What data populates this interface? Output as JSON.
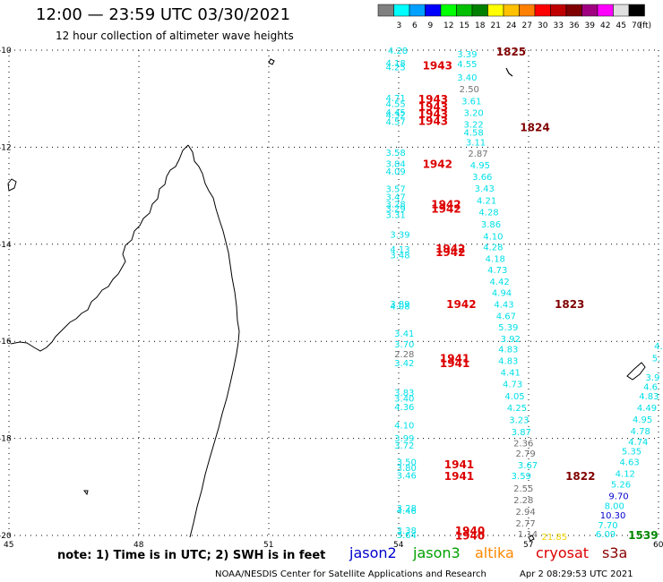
{
  "header": {
    "title": "12:00 — 23:59 UTC 03/30/2021",
    "subtitle": "12 hour collection of altimeter wave heights"
  },
  "legend": {
    "unit": "(ft)",
    "bins": [
      {
        "label": "",
        "color": "#808080"
      },
      {
        "label": "3",
        "color": "#00ffff"
      },
      {
        "label": "6",
        "color": "#00a0ff"
      },
      {
        "label": "9",
        "color": "#0000ff"
      },
      {
        "label": "12",
        "color": "#00ff00"
      },
      {
        "label": "15",
        "color": "#00c000"
      },
      {
        "label": "18",
        "color": "#008000"
      },
      {
        "label": "21",
        "color": "#ffff00"
      },
      {
        "label": "24",
        "color": "#ffc000"
      },
      {
        "label": "27",
        "color": "#ff8000"
      },
      {
        "label": "30",
        "color": "#ff0000"
      },
      {
        "label": "33",
        "color": "#c00000"
      },
      {
        "label": "36",
        "color": "#800000"
      },
      {
        "label": "39",
        "color": "#a00080"
      },
      {
        "label": "42",
        "color": "#ff00ff"
      },
      {
        "label": "45",
        "color": "#e0e0e0"
      },
      {
        "label": "70",
        "color": "#000000"
      }
    ]
  },
  "axes": {
    "lat_labels": [
      "-10",
      "-12",
      "-14",
      "-16",
      "-18",
      "-20"
    ],
    "lon_labels": [
      "45",
      "48",
      "51",
      "54",
      "57",
      "60"
    ]
  },
  "footer": {
    "note": "note: 1) Time is in UTC; 2) SWH is in feet",
    "satellites": [
      {
        "name": "jason2",
        "color": "#0000cc"
      },
      {
        "name": "jason3",
        "color": "#00a000"
      },
      {
        "name": "altika",
        "color": "#ff8800"
      },
      {
        "name": "cryosat",
        "color": "#dd0000"
      },
      {
        "name": "s3a",
        "color": "#880000"
      }
    ],
    "credit": "NOAA/NESDIS Center for Satellite Applications and Research",
    "stamp": "Apr  2 08:29:53 UTC 2021"
  },
  "colors": {
    "cyan": "#00e0e8",
    "gray": "#707070",
    "red": "#dd0000",
    "dark": "#800000",
    "blue": "#0000cc",
    "green": "#008800",
    "yellow": "#f0d000"
  },
  "observations": [
    {
      "lat": -10.0,
      "lon": 53.75,
      "v": "4.28",
      "c": "cyan"
    },
    {
      "lat": -10.26,
      "lon": 53.7,
      "v": "4.18",
      "c": "cyan"
    },
    {
      "lat": -10.34,
      "lon": 53.7,
      "v": "4.25",
      "c": "cyan"
    },
    {
      "lat": -10.98,
      "lon": 53.7,
      "v": "4.71",
      "c": "cyan"
    },
    {
      "lat": -11.1,
      "lon": 53.7,
      "v": "4.55",
      "c": "cyan"
    },
    {
      "lat": -11.27,
      "lon": 53.7,
      "v": "4.45",
      "c": "cyan"
    },
    {
      "lat": -11.33,
      "lon": 53.7,
      "v": "4.32",
      "c": "cyan"
    },
    {
      "lat": -11.47,
      "lon": 53.7,
      "v": "4.57",
      "c": "cyan"
    },
    {
      "lat": -12.1,
      "lon": 53.7,
      "v": "3.58",
      "c": "cyan"
    },
    {
      "lat": -12.33,
      "lon": 53.7,
      "v": "3.84",
      "c": "cyan"
    },
    {
      "lat": -12.49,
      "lon": 53.7,
      "v": "4.09",
      "c": "cyan"
    },
    {
      "lat": -12.85,
      "lon": 53.7,
      "v": "3.57",
      "c": "cyan"
    },
    {
      "lat": -13.02,
      "lon": 53.7,
      "v": "3.47",
      "c": "cyan"
    },
    {
      "lat": -13.16,
      "lon": 53.7,
      "v": "3.28",
      "c": "cyan"
    },
    {
      "lat": -13.26,
      "lon": 53.7,
      "v": "3.29",
      "c": "cyan"
    },
    {
      "lat": -13.39,
      "lon": 53.7,
      "v": "3.31",
      "c": "cyan"
    },
    {
      "lat": -13.79,
      "lon": 53.8,
      "v": "3.39",
      "c": "cyan"
    },
    {
      "lat": -14.1,
      "lon": 53.8,
      "v": "4.13",
      "c": "cyan"
    },
    {
      "lat": -14.22,
      "lon": 53.8,
      "v": "3.48",
      "c": "cyan"
    },
    {
      "lat": -15.22,
      "lon": 53.8,
      "v": "3.89",
      "c": "cyan"
    },
    {
      "lat": -15.27,
      "lon": 53.8,
      "v": "4.08",
      "c": "cyan"
    },
    {
      "lat": -15.83,
      "lon": 53.9,
      "v": "3.41",
      "c": "cyan"
    },
    {
      "lat": -16.05,
      "lon": 53.9,
      "v": "3.70",
      "c": "cyan"
    },
    {
      "lat": -16.25,
      "lon": 53.9,
      "v": "2.28",
      "c": "gray"
    },
    {
      "lat": -16.44,
      "lon": 53.9,
      "v": "3.42",
      "c": "cyan"
    },
    {
      "lat": -17.05,
      "lon": 53.9,
      "v": "3.83",
      "c": "cyan"
    },
    {
      "lat": -17.17,
      "lon": 53.9,
      "v": "3.40",
      "c": "cyan"
    },
    {
      "lat": -17.34,
      "lon": 53.9,
      "v": "4.36",
      "c": "cyan"
    },
    {
      "lat": -17.72,
      "lon": 53.9,
      "v": "4.10",
      "c": "cyan"
    },
    {
      "lat": -17.99,
      "lon": 53.9,
      "v": "3.99",
      "c": "cyan"
    },
    {
      "lat": -18.14,
      "lon": 53.9,
      "v": "3.72",
      "c": "cyan"
    },
    {
      "lat": -18.48,
      "lon": 53.95,
      "v": "3.50",
      "c": "cyan"
    },
    {
      "lat": -18.6,
      "lon": 53.95,
      "v": "3.80",
      "c": "cyan"
    },
    {
      "lat": -18.75,
      "lon": 53.95,
      "v": "3.46",
      "c": "cyan"
    },
    {
      "lat": -19.43,
      "lon": 53.95,
      "v": "3.28",
      "c": "cyan"
    },
    {
      "lat": -19.48,
      "lon": 53.95,
      "v": "4.46",
      "c": "cyan"
    },
    {
      "lat": -19.89,
      "lon": 53.95,
      "v": "3.38",
      "c": "cyan"
    },
    {
      "lat": -19.98,
      "lon": 53.95,
      "v": "3.64",
      "c": "cyan"
    },
    {
      "lat": -10.07,
      "lon": 55.35,
      "v": "3.39",
      "c": "cyan"
    },
    {
      "lat": -10.28,
      "lon": 55.35,
      "v": "4.55",
      "c": "cyan"
    },
    {
      "lat": -10.55,
      "lon": 55.35,
      "v": "3.40",
      "c": "cyan"
    },
    {
      "lat": -10.79,
      "lon": 55.4,
      "v": "2.50",
      "c": "gray"
    },
    {
      "lat": -11.04,
      "lon": 55.45,
      "v": "3.61",
      "c": "cyan"
    },
    {
      "lat": -11.28,
      "lon": 55.5,
      "v": "3.20",
      "c": "cyan"
    },
    {
      "lat": -11.52,
      "lon": 55.5,
      "v": "3.22",
      "c": "cyan"
    },
    {
      "lat": -11.69,
      "lon": 55.5,
      "v": "4.58",
      "c": "cyan"
    },
    {
      "lat": -11.89,
      "lon": 55.55,
      "v": "3.11",
      "c": "cyan"
    },
    {
      "lat": -12.12,
      "lon": 55.6,
      "v": "2.87",
      "c": "gray"
    },
    {
      "lat": -12.36,
      "lon": 55.65,
      "v": "4.95",
      "c": "cyan"
    },
    {
      "lat": -12.6,
      "lon": 55.7,
      "v": "3.66",
      "c": "cyan"
    },
    {
      "lat": -12.84,
      "lon": 55.75,
      "v": "3.43",
      "c": "cyan"
    },
    {
      "lat": -13.09,
      "lon": 55.8,
      "v": "4.21",
      "c": "cyan"
    },
    {
      "lat": -13.33,
      "lon": 55.85,
      "v": "4.28",
      "c": "cyan"
    },
    {
      "lat": -13.58,
      "lon": 55.9,
      "v": "3.86",
      "c": "cyan"
    },
    {
      "lat": -13.83,
      "lon": 55.95,
      "v": "4.10",
      "c": "cyan"
    },
    {
      "lat": -14.05,
      "lon": 55.95,
      "v": "4.28",
      "c": "cyan"
    },
    {
      "lat": -14.29,
      "lon": 56.0,
      "v": "4.18",
      "c": "cyan"
    },
    {
      "lat": -14.52,
      "lon": 56.05,
      "v": "4.73",
      "c": "cyan"
    },
    {
      "lat": -14.76,
      "lon": 56.1,
      "v": "4.42",
      "c": "cyan"
    },
    {
      "lat": -14.99,
      "lon": 56.15,
      "v": "4.94",
      "c": "cyan"
    },
    {
      "lat": -15.23,
      "lon": 56.2,
      "v": "4.43",
      "c": "cyan"
    },
    {
      "lat": -15.47,
      "lon": 56.25,
      "v": "4.67",
      "c": "cyan"
    },
    {
      "lat": -15.7,
      "lon": 56.3,
      "v": "5.39",
      "c": "cyan"
    },
    {
      "lat": -15.94,
      "lon": 56.35,
      "v": "3.92",
      "c": "cyan"
    },
    {
      "lat": -16.15,
      "lon": 56.3,
      "v": "4.83",
      "c": "cyan"
    },
    {
      "lat": -16.39,
      "lon": 56.3,
      "v": "4.83",
      "c": "cyan"
    },
    {
      "lat": -16.63,
      "lon": 56.35,
      "v": "4.41",
      "c": "cyan"
    },
    {
      "lat": -16.87,
      "lon": 56.4,
      "v": "4.73",
      "c": "cyan"
    },
    {
      "lat": -17.12,
      "lon": 56.45,
      "v": "4.05",
      "c": "cyan"
    },
    {
      "lat": -17.36,
      "lon": 56.5,
      "v": "4.25",
      "c": "cyan"
    },
    {
      "lat": -17.61,
      "lon": 56.55,
      "v": "3.23",
      "c": "cyan"
    },
    {
      "lat": -17.86,
      "lon": 56.6,
      "v": "3.87",
      "c": "cyan"
    },
    {
      "lat": -18.09,
      "lon": 56.65,
      "v": "2.36",
      "c": "gray"
    },
    {
      "lat": -18.3,
      "lon": 56.7,
      "v": "2.79",
      "c": "gray"
    },
    {
      "lat": -18.54,
      "lon": 56.75,
      "v": "3.67",
      "c": "cyan"
    },
    {
      "lat": -18.76,
      "lon": 56.6,
      "v": "3.59",
      "c": "cyan"
    },
    {
      "lat": -19.02,
      "lon": 56.65,
      "v": "2.55",
      "c": "gray"
    },
    {
      "lat": -19.26,
      "lon": 56.65,
      "v": "2.28",
      "c": "gray"
    },
    {
      "lat": -19.5,
      "lon": 56.7,
      "v": "2.94",
      "c": "gray"
    },
    {
      "lat": -19.74,
      "lon": 56.7,
      "v": "2.77",
      "c": "gray"
    },
    {
      "lat": -19.96,
      "lon": 56.75,
      "v": "1.14",
      "c": "gray"
    },
    {
      "lat": -20.02,
      "lon": 57.3,
      "v": "21.85",
      "c": "yellow"
    },
    {
      "lat": -16.09,
      "lon": 59.9,
      "v": "4.",
      "c": "cyan"
    },
    {
      "lat": -16.34,
      "lon": 59.85,
      "v": "5.",
      "c": "cyan"
    },
    {
      "lat": -16.73,
      "lon": 59.7,
      "v": "3.9",
      "c": "cyan"
    },
    {
      "lat": -16.93,
      "lon": 59.65,
      "v": "4.6",
      "c": "cyan"
    },
    {
      "lat": -17.12,
      "lon": 59.55,
      "v": "4.83",
      "c": "cyan"
    },
    {
      "lat": -17.36,
      "lon": 59.5,
      "v": "4.49",
      "c": "cyan"
    },
    {
      "lat": -17.6,
      "lon": 59.4,
      "v": "4.95",
      "c": "cyan"
    },
    {
      "lat": -17.84,
      "lon": 59.35,
      "v": "4.78",
      "c": "cyan"
    },
    {
      "lat": -18.06,
      "lon": 59.3,
      "v": "4.74",
      "c": "cyan"
    },
    {
      "lat": -18.26,
      "lon": 59.15,
      "v": "5.35",
      "c": "cyan"
    },
    {
      "lat": -18.48,
      "lon": 59.1,
      "v": "4.63",
      "c": "cyan"
    },
    {
      "lat": -18.72,
      "lon": 59.0,
      "v": "4.12",
      "c": "cyan"
    },
    {
      "lat": -18.94,
      "lon": 58.9,
      "v": "5.26",
      "c": "cyan"
    },
    {
      "lat": -19.18,
      "lon": 58.85,
      "v": "9.70",
      "c": "blue"
    },
    {
      "lat": -19.38,
      "lon": 58.75,
      "v": "8.00",
      "c": "cyan"
    },
    {
      "lat": -19.58,
      "lon": 58.65,
      "v": "10.30",
      "c": "blue"
    },
    {
      "lat": -19.78,
      "lon": 58.6,
      "v": "7.70",
      "c": "cyan"
    },
    {
      "lat": -19.96,
      "lon": 58.55,
      "v": "6.09",
      "c": "cyan"
    }
  ],
  "time_labels": [
    {
      "lat": -10.3,
      "lon": 54.55,
      "v": "1943",
      "c": "red"
    },
    {
      "lat": -11.0,
      "lon": 54.45,
      "v": "1943",
      "c": "red"
    },
    {
      "lat": -11.15,
      "lon": 54.45,
      "v": "1943",
      "c": "red"
    },
    {
      "lat": -11.3,
      "lon": 54.45,
      "v": "1943",
      "c": "red"
    },
    {
      "lat": -11.45,
      "lon": 54.45,
      "v": "1943",
      "c": "red"
    },
    {
      "lat": -12.33,
      "lon": 54.55,
      "v": "1942",
      "c": "red"
    },
    {
      "lat": -13.16,
      "lon": 54.75,
      "v": "1942",
      "c": "red"
    },
    {
      "lat": -13.26,
      "lon": 54.75,
      "v": "1942",
      "c": "red"
    },
    {
      "lat": -14.08,
      "lon": 54.85,
      "v": "1942",
      "c": "red"
    },
    {
      "lat": -14.15,
      "lon": 54.85,
      "v": "1942",
      "c": "red"
    },
    {
      "lat": -15.22,
      "lon": 55.1,
      "v": "1942",
      "c": "red"
    },
    {
      "lat": -16.34,
      "lon": 54.95,
      "v": "1941",
      "c": "red"
    },
    {
      "lat": -16.44,
      "lon": 54.95,
      "v": "1941",
      "c": "red"
    },
    {
      "lat": -18.52,
      "lon": 55.05,
      "v": "1941",
      "c": "red"
    },
    {
      "lat": -18.76,
      "lon": 55.05,
      "v": "1941",
      "c": "red"
    },
    {
      "lat": -19.89,
      "lon": 55.3,
      "v": "1940",
      "c": "red"
    },
    {
      "lat": -19.99,
      "lon": 55.3,
      "v": "1940",
      "c": "red"
    },
    {
      "lat": -10.02,
      "lon": 56.25,
      "v": "1825",
      "c": "dark"
    },
    {
      "lat": -11.58,
      "lon": 56.8,
      "v": "1824",
      "c": "dark"
    },
    {
      "lat": -15.22,
      "lon": 57.6,
      "v": "1823",
      "c": "dark"
    },
    {
      "lat": -18.76,
      "lon": 57.85,
      "v": "1822",
      "c": "dark"
    },
    {
      "lat": -19.98,
      "lon": 59.3,
      "v": "1539",
      "c": "green"
    }
  ]
}
